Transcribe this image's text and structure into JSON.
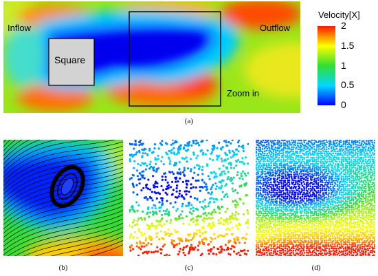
{
  "panel_a": {
    "inflow_label": "Inflow",
    "outflow_label": "Outflow",
    "square_label": "Square",
    "zoom_label": "Zoom in",
    "caption": "(a)"
  },
  "colorbar": {
    "title": "Velocity[X]",
    "ticks": [
      "2",
      "1.5",
      "1",
      "0.5",
      "0"
    ],
    "colors": [
      "#ff1a00",
      "#ffff00",
      "#33dd33",
      "#00d8ff",
      "#0000ff"
    ]
  },
  "captions": {
    "b": "(b)",
    "c": "(c)",
    "d": "(d)"
  }
}
